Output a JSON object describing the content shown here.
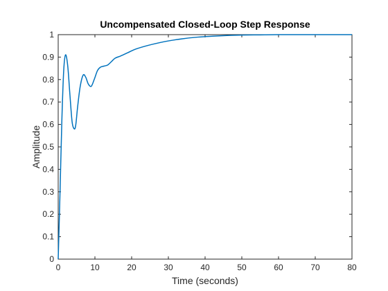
{
  "chart_data": {
    "type": "line",
    "title": "Uncompensated Closed-Loop Step Response",
    "xlabel": "Time (seconds)",
    "ylabel": "Amplitude",
    "xlim": [
      0,
      80
    ],
    "ylim": [
      0,
      1
    ],
    "xticks": [
      0,
      10,
      20,
      30,
      40,
      50,
      60,
      70,
      80
    ],
    "yticks": [
      0,
      0.1,
      0.2,
      0.3,
      0.4,
      0.5,
      0.6,
      0.7,
      0.8,
      0.9,
      1
    ],
    "xtick_labels": [
      "0",
      "10",
      "20",
      "30",
      "40",
      "50",
      "60",
      "70",
      "80"
    ],
    "ytick_labels": [
      "0",
      "0.1",
      "0.2",
      "0.3",
      "0.4",
      "0.5",
      "0.6",
      "0.7",
      "0.8",
      "0.9",
      "1"
    ],
    "grid": false,
    "line_color": "#0072bd",
    "axis_color": "#262626",
    "series": [
      {
        "x": [
          0,
          0.5,
          1.0,
          1.5,
          2.0,
          2.6,
          3.2,
          3.8,
          4.4,
          4.8,
          5.3,
          6.0,
          6.8,
          7.5,
          8.2,
          9.0,
          9.8,
          10.7,
          11.5,
          12.5,
          13.5,
          14.5,
          15.5,
          17,
          19,
          21,
          24,
          27,
          30,
          34,
          38,
          42,
          46,
          50,
          55,
          60,
          70,
          80
        ],
        "y": [
          0,
          0.3,
          0.62,
          0.84,
          0.91,
          0.86,
          0.73,
          0.61,
          0.58,
          0.6,
          0.68,
          0.77,
          0.82,
          0.81,
          0.78,
          0.77,
          0.8,
          0.84,
          0.855,
          0.86,
          0.865,
          0.88,
          0.895,
          0.905,
          0.92,
          0.935,
          0.95,
          0.962,
          0.972,
          0.982,
          0.989,
          0.993,
          0.996,
          0.998,
          0.999,
          1.0,
          1.0,
          1.0
        ]
      }
    ]
  }
}
